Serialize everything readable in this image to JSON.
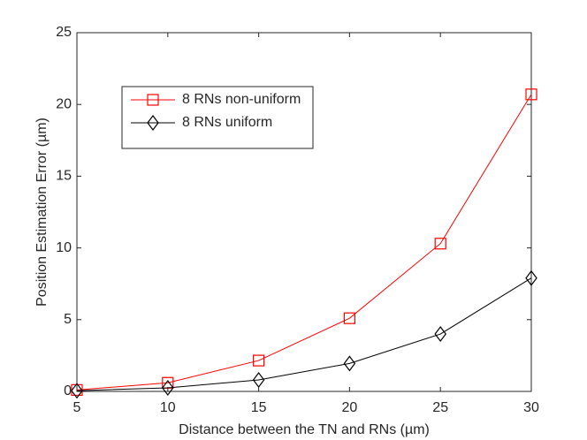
{
  "chart_data": {
    "type": "line",
    "x_label": "Distance between the TN and RNs (µm)",
    "y_label": "Position Estimation Error (µm)",
    "x": [
      5,
      10,
      15,
      20,
      25,
      30
    ],
    "series": [
      {
        "name": "8 RNs non-uniform",
        "color": "#ff0000",
        "marker": "square",
        "values": [
          0.1,
          0.6,
          2.15,
          5.1,
          10.3,
          20.7
        ]
      },
      {
        "name": "8 RNs uniform",
        "color": "#000000",
        "marker": "diamond",
        "values": [
          0.05,
          0.25,
          0.8,
          1.95,
          4.0,
          7.9
        ]
      }
    ],
    "xlim": [
      5,
      30
    ],
    "xticks": [
      5,
      10,
      15,
      20,
      25,
      30
    ],
    "ylim": [
      0,
      25
    ],
    "yticks": [
      0,
      5,
      10,
      15,
      20,
      25
    ],
    "grid": false,
    "legend": "upper left"
  }
}
